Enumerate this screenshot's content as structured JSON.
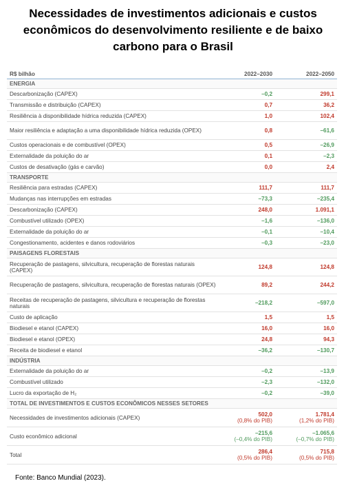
{
  "title": "Necessidades de investimentos adicionais e custos econômicos do desenvolvimento resiliente e de baixo carbono para o Brasil",
  "table": {
    "header": [
      "R$ bilhão",
      "2022–2030",
      "2022–2050"
    ],
    "sections": [
      {
        "title": "ENERGIA",
        "rows": [
          [
            "Descarbonização (CAPEX)",
            "–0,2",
            "299,1"
          ],
          [
            "Transmissão e distribuição (CAPEX)",
            "0,7",
            "36,2"
          ],
          [
            "Resiliência à disponibilidade hídrica reduzida (CAPEX)",
            "1,0",
            "102,4"
          ],
          [
            "Maior resiliência e adaptação a uma disponibilidade hídrica reduzida (OPEX)",
            "0,8",
            "–61,6"
          ],
          [
            "Custos operacionais e de combustível (OPEX)",
            "0,5",
            "–26,9"
          ],
          [
            "Externalidade da poluição do ar",
            "0,1",
            "–2,3"
          ],
          [
            "Custos de desativação (gás e carvão)",
            "0,0",
            "2,4"
          ]
        ]
      },
      {
        "title": "TRANSPORTE",
        "rows": [
          [
            "Resiliência para estradas (CAPEX)",
            "111,7",
            "111,7"
          ],
          [
            "Mudanças nas interrupções em estradas",
            "–73,3",
            "–235,4"
          ],
          [
            "Descarbonização (CAPEX)",
            "248,0",
            "1.091,1"
          ],
          [
            "Combustível utilizado (OPEX)",
            "–1,6",
            "–136,0"
          ],
          [
            "Externalidade da poluição do ar",
            "–0,1",
            "–10,4"
          ],
          [
            "Congestionamento, acidentes e danos rodoviários",
            "–0,3",
            "–23,0"
          ]
        ]
      },
      {
        "title": "PAISAGENS FLORESTAIS",
        "rows": [
          [
            "Recuperação de pastagens, silvicultura, recuperação de florestas naturais (CAPEX)",
            "124,8",
            "124,8"
          ],
          [
            "Recuperação de pastagens, silvicultura, recuperação de florestas naturais (OPEX)",
            "89,2",
            "244,2"
          ],
          [
            "Receitas de recuperação de pastagens, silvicultura e recuperação de florestas naturais",
            "–218,2",
            "–597,0"
          ],
          [
            "Custo de aplicação",
            "1,5",
            "1,5"
          ],
          [
            "Biodiesel e etanol (CAPEX)",
            "16,0",
            "16,0"
          ],
          [
            "Biodiesel e etanol (OPEX)",
            "24,8",
            "94,3"
          ],
          [
            "Receita de biodiesel e etanol",
            "–36,2",
            "–130,7"
          ]
        ]
      },
      {
        "title": "INDÚSTRIA",
        "rows": [
          [
            "Externalidade da poluição do ar",
            "–0,2",
            "–13,9"
          ],
          [
            "Combustível utilizado",
            "–2,3",
            "–132,0"
          ],
          [
            "Lucro da exportação de H₂",
            "–0,2",
            "–39,0"
          ]
        ]
      }
    ],
    "totals": {
      "title": "TOTAL DE INVESTIMENTOS E CUSTOS ECONÔMICOS NESSES SETORES",
      "rows": [
        {
          "label": "Necessidades de investimentos adicionais (CAPEX)",
          "values": [
            [
              "502,0",
              "(0,8% do PIB)"
            ],
            [
              "1.781,4",
              "(1,2% do PIB)"
            ]
          ]
        },
        {
          "label": "Custo econômico adicional",
          "values": [
            [
              "–215,6",
              "(–0,4% do PIB)"
            ],
            [
              "–1.065,6",
              "(–0,7% do PIB)"
            ]
          ]
        },
        {
          "label": "Total",
          "values": [
            [
              "286,4",
              "(0,5% do PIB)"
            ],
            [
              "715,8",
              "(0,5% do PIB)"
            ]
          ]
        }
      ]
    }
  },
  "source": "Fonte:  Banco Mundial (2023)."
}
